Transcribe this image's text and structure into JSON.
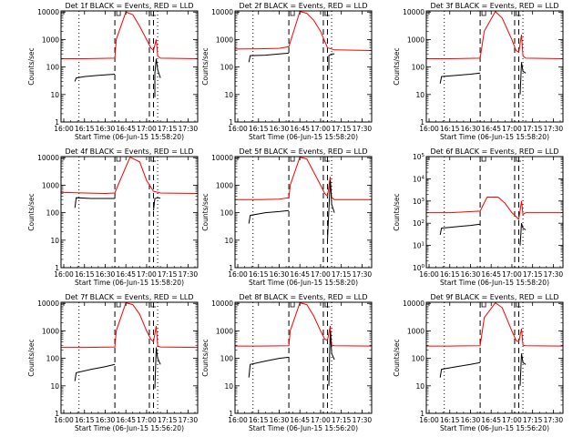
{
  "figure": {
    "background": "#ffffff",
    "axis_color": "#000000"
  },
  "chart_data": [
    {
      "type": "line",
      "detector": "1f",
      "title": "Det 1f BLACK = Events, RED = LLD",
      "xlabel": "Start Time (06-Jun-15 15:58:20)",
      "ylabel": "Counts/sec",
      "xlim": [
        "15:58",
        "17:37"
      ],
      "ylim": [
        1,
        11000
      ],
      "yscale": "log",
      "ytick_style": "plain",
      "xticks": [
        "16:00",
        "16:15",
        "16:30",
        "16:45",
        "17:00",
        "17:15",
        "17:30"
      ],
      "yticks": [
        1,
        10,
        100,
        1000,
        10000
      ],
      "dotted_lines": [
        "16:11",
        "17:08"
      ],
      "dashed_lines": [
        "16:37",
        "17:02",
        "17:05"
      ],
      "series": [
        {
          "name": "LLD",
          "color": "#ff0000",
          "x": [
            "15:58",
            "16:15",
            "16:37",
            "16:38",
            "16:45",
            "16:50",
            "16:55",
            "17:00",
            "17:03",
            "17:05",
            "17:07",
            "17:08",
            "17:10",
            "17:37"
          ],
          "y": [
            200,
            200,
            210,
            1000,
            10000,
            8000,
            3000,
            1000,
            500,
            400,
            1000,
            250,
            210,
            200
          ]
        },
        {
          "name": "Events",
          "color": "#000000",
          "x": [
            "16:08",
            "16:09",
            "16:15",
            "16:25",
            "16:37"
          ],
          "y": [
            30,
            40,
            45,
            50,
            55
          ]
        },
        {
          "name": "Events",
          "color": "#000000",
          "x": [
            "17:06",
            "17:06",
            "17:07",
            "17:08",
            "17:10"
          ],
          "y": [
            8,
            60,
            200,
            80,
            40
          ]
        }
      ]
    },
    {
      "type": "line",
      "detector": "2f",
      "title": "Det 2f BLACK = Events, RED = LLD",
      "xlabel": "Start Time (06-Jun-15 15:58:20)",
      "ylabel": "Counts/sec",
      "xlim": [
        "15:58",
        "17:37"
      ],
      "ylim": [
        1,
        11000
      ],
      "yscale": "log",
      "ytick_style": "plain",
      "xticks": [
        "16:00",
        "16:15",
        "16:30",
        "16:45",
        "17:00",
        "17:15",
        "17:30"
      ],
      "yticks": [
        1,
        10,
        100,
        1000,
        10000
      ],
      "dotted_lines": [
        "16:11",
        "17:08"
      ],
      "dashed_lines": [
        "16:37",
        "17:02",
        "17:05"
      ],
      "series": [
        {
          "name": "LLD",
          "color": "#ff0000",
          "x": [
            "15:58",
            "16:15",
            "16:30",
            "16:37",
            "16:45",
            "16:50",
            "16:55",
            "17:00",
            "17:05",
            "17:10",
            "17:37"
          ],
          "y": [
            450,
            460,
            480,
            550,
            10500,
            9000,
            5000,
            2000,
            500,
            420,
            400
          ]
        },
        {
          "name": "Events",
          "color": "#000000",
          "x": [
            "16:08",
            "16:09",
            "16:20",
            "16:30",
            "16:37"
          ],
          "y": [
            150,
            260,
            270,
            300,
            320
          ]
        },
        {
          "name": "Events",
          "color": "#000000",
          "x": [
            "17:06",
            "17:06",
            "17:08",
            "17:10"
          ],
          "y": [
            80,
            260,
            300,
            300
          ]
        }
      ]
    },
    {
      "type": "line",
      "detector": "3f",
      "title": "Det 3f BLACK = Events, RED = LLD",
      "xlabel": "Start Time (06-Jun-15 15:58:20)",
      "ylabel": "Counts/sec",
      "xlim": [
        "15:58",
        "17:37"
      ],
      "ylim": [
        1,
        11000
      ],
      "yscale": "log",
      "ytick_style": "plain",
      "xticks": [
        "16:00",
        "16:15",
        "16:30",
        "16:45",
        "17:00",
        "17:15",
        "17:30"
      ],
      "yticks": [
        1,
        10,
        100,
        1000,
        10000
      ],
      "dotted_lines": [
        "16:11",
        "17:08"
      ],
      "dashed_lines": [
        "16:37",
        "17:02",
        "17:05"
      ],
      "series": [
        {
          "name": "LLD",
          "color": "#ff0000",
          "x": [
            "15:58",
            "16:15",
            "16:37",
            "16:40",
            "16:48",
            "16:53",
            "17:00",
            "17:03",
            "17:05",
            "17:07",
            "17:08",
            "17:10",
            "17:37"
          ],
          "y": [
            200,
            200,
            210,
            2000,
            10500,
            6000,
            1000,
            400,
            350,
            1500,
            250,
            210,
            200
          ]
        },
        {
          "name": "Events",
          "color": "#000000",
          "x": [
            "16:08",
            "16:09",
            "16:20",
            "16:30",
            "16:37"
          ],
          "y": [
            25,
            45,
            50,
            55,
            60
          ]
        },
        {
          "name": "Events",
          "color": "#000000",
          "x": [
            "17:06",
            "17:07",
            "17:08",
            "17:10"
          ],
          "y": [
            10,
            150,
            70,
            60
          ]
        }
      ]
    },
    {
      "type": "line",
      "detector": "4f",
      "title": "Det 4f BLACK = Events, RED = LLD",
      "xlabel": "Start Time (06-Jun-15 15:58:20)",
      "ylabel": "Counts/sec",
      "xlim": [
        "15:58",
        "17:37"
      ],
      "ylim": [
        1,
        11000
      ],
      "yscale": "log",
      "ytick_style": "plain",
      "xticks": [
        "16:00",
        "16:15",
        "16:30",
        "16:45",
        "17:00",
        "17:15",
        "17:30"
      ],
      "yticks": [
        1,
        10,
        100,
        1000,
        10000
      ],
      "dotted_lines": [
        "16:11",
        "17:08"
      ],
      "dashed_lines": [
        "16:37",
        "17:02",
        "17:05"
      ],
      "series": [
        {
          "name": "LLD",
          "color": "#ff0000",
          "x": [
            "15:58",
            "16:15",
            "16:30",
            "16:37",
            "16:40",
            "16:48",
            "16:55",
            "17:00",
            "17:05",
            "17:10",
            "17:37"
          ],
          "y": [
            550,
            520,
            500,
            520,
            1200,
            10500,
            7000,
            1500,
            600,
            520,
            500
          ]
        },
        {
          "name": "Events",
          "color": "#000000",
          "x": [
            "16:08",
            "16:09",
            "16:20",
            "16:30",
            "16:37"
          ],
          "y": [
            150,
            350,
            330,
            330,
            330
          ]
        },
        {
          "name": "Events",
          "color": "#000000",
          "x": [
            "17:05",
            "17:06",
            "17:08",
            "17:10"
          ],
          "y": [
            120,
            330,
            350,
            340
          ]
        }
      ]
    },
    {
      "type": "line",
      "detector": "5f",
      "title": "Det 5f BLACK = Events, RED = LLD",
      "xlabel": "Start Time (06-Jun-15 15:58:20)",
      "ylabel": "Counts/sec",
      "xlim": [
        "15:58",
        "17:37"
      ],
      "ylim": [
        1,
        11000
      ],
      "yscale": "log",
      "ytick_style": "plain",
      "xticks": [
        "16:00",
        "16:15",
        "16:30",
        "16:45",
        "17:00",
        "17:15",
        "17:30"
      ],
      "yticks": [
        1,
        10,
        100,
        1000,
        10000
      ],
      "dotted_lines": [
        "16:11",
        "17:08"
      ],
      "dashed_lines": [
        "16:37",
        "17:02",
        "17:05"
      ],
      "series": [
        {
          "name": "LLD",
          "color": "#ff0000",
          "x": [
            "15:58",
            "16:15",
            "16:30",
            "16:37",
            "16:38",
            "16:45",
            "16:50",
            "16:55",
            "17:00",
            "17:03",
            "17:05",
            "17:07",
            "17:08",
            "17:10",
            "17:37"
          ],
          "y": [
            300,
            300,
            310,
            350,
            1000,
            10500,
            9000,
            3000,
            1000,
            500,
            400,
            2000,
            350,
            300,
            300
          ]
        },
        {
          "name": "Events",
          "color": "#000000",
          "x": [
            "16:08",
            "16:09",
            "16:20",
            "16:30",
            "16:37"
          ],
          "y": [
            40,
            80,
            100,
            110,
            120
          ]
        },
        {
          "name": "Events",
          "color": "#000000",
          "x": [
            "17:05",
            "17:07",
            "17:08",
            "17:10"
          ],
          "y": [
            10,
            1500,
            200,
            100
          ]
        }
      ]
    },
    {
      "type": "line",
      "detector": "6f",
      "title": "Det 6f BLACK = Events, RED = LLD",
      "xlabel": "Start Time (06-Jun-15 15:58:20)",
      "ylabel": "Counts/sec",
      "xlim": [
        "15:58",
        "17:37"
      ],
      "ylim": [
        1,
        100000
      ],
      "yscale": "log",
      "ytick_style": "power",
      "xticks": [
        "16:00",
        "16:15",
        "16:30",
        "16:45",
        "17:00",
        "17:15",
        "17:30"
      ],
      "yticks": [
        1,
        10,
        100,
        1000,
        10000,
        100000
      ],
      "dotted_lines": [
        "16:11",
        "17:08"
      ],
      "dashed_lines": [
        "16:37",
        "17:02",
        "17:05"
      ],
      "series": [
        {
          "name": "LLD",
          "color": "#ff0000",
          "x": [
            "15:58",
            "16:15",
            "16:37",
            "16:42",
            "16:50",
            "16:55",
            "17:00",
            "17:03",
            "17:05",
            "17:07",
            "17:08",
            "17:10",
            "17:37"
          ],
          "y": [
            300,
            300,
            350,
            1500,
            1500,
            800,
            300,
            200,
            150,
            1000,
            250,
            300,
            300
          ]
        },
        {
          "name": "Events",
          "color": "#000000",
          "x": [
            "16:08",
            "16:09",
            "16:20",
            "16:30",
            "16:37"
          ],
          "y": [
            30,
            60,
            70,
            80,
            90
          ]
        },
        {
          "name": "Events",
          "color": "#000000",
          "x": [
            "17:06",
            "17:07",
            "17:08",
            "17:10"
          ],
          "y": [
            10,
            100,
            60,
            50
          ]
        }
      ]
    },
    {
      "type": "line",
      "detector": "7f",
      "title": "Det 7f BLACK = Events, RED = LLD",
      "xlabel": "Start Time (06-Jun-15 15:56:20)",
      "ylabel": "Counts/sec",
      "xlim": [
        "15:58",
        "17:37"
      ],
      "ylim": [
        1,
        11000
      ],
      "yscale": "log",
      "ytick_style": "plain",
      "xticks": [
        "16:00",
        "16:15",
        "16:30",
        "16:45",
        "17:00",
        "17:15",
        "17:30"
      ],
      "yticks": [
        1,
        10,
        100,
        1000,
        10000
      ],
      "dotted_lines": [
        "16:11",
        "17:08"
      ],
      "dashed_lines": [
        "16:37",
        "17:02",
        "17:05"
      ],
      "series": [
        {
          "name": "LLD",
          "color": "#ff0000",
          "x": [
            "15:58",
            "16:15",
            "16:37",
            "16:38",
            "16:45",
            "16:50",
            "16:55",
            "17:00",
            "17:03",
            "17:05",
            "17:07",
            "17:08",
            "17:10",
            "17:37"
          ],
          "y": [
            250,
            250,
            260,
            1000,
            10500,
            9000,
            4000,
            1000,
            500,
            400,
            1500,
            280,
            260,
            250
          ]
        },
        {
          "name": "Events",
          "color": "#000000",
          "x": [
            "16:08",
            "16:09",
            "16:20",
            "16:30",
            "16:37"
          ],
          "y": [
            15,
            30,
            40,
            50,
            60
          ]
        },
        {
          "name": "Events",
          "color": "#000000",
          "x": [
            "17:06",
            "17:07",
            "17:08",
            "17:10"
          ],
          "y": [
            8,
            250,
            100,
            60
          ]
        }
      ]
    },
    {
      "type": "line",
      "detector": "8f",
      "title": "Det 8f BLACK = Events, RED = LLD",
      "xlabel": "Start Time (06-Jun-15 15:56:20)",
      "ylabel": "Counts/sec",
      "xlim": [
        "15:58",
        "17:37"
      ],
      "ylim": [
        1,
        11000
      ],
      "yscale": "log",
      "ytick_style": "plain",
      "xticks": [
        "16:00",
        "16:15",
        "16:30",
        "16:45",
        "17:00",
        "17:15",
        "17:30"
      ],
      "yticks": [
        1,
        10,
        100,
        1000,
        10000
      ],
      "dotted_lines": [
        "16:11",
        "17:08"
      ],
      "dashed_lines": [
        "16:37",
        "17:02",
        "17:05"
      ],
      "series": [
        {
          "name": "LLD",
          "color": "#ff0000",
          "x": [
            "15:58",
            "16:15",
            "16:37",
            "16:38",
            "16:45",
            "16:50",
            "16:55",
            "17:00",
            "17:03",
            "17:05",
            "17:07",
            "17:08",
            "17:10",
            "17:37"
          ],
          "y": [
            280,
            280,
            290,
            1000,
            10500,
            9000,
            3500,
            1000,
            500,
            450,
            1500,
            300,
            290,
            280
          ]
        },
        {
          "name": "Events",
          "color": "#000000",
          "x": [
            "16:08",
            "16:09",
            "16:20",
            "16:30",
            "16:37"
          ],
          "y": [
            20,
            60,
            80,
            100,
            110
          ]
        },
        {
          "name": "Events",
          "color": "#000000",
          "x": [
            "17:06",
            "17:07",
            "17:08",
            "17:10"
          ],
          "y": [
            10,
            1000,
            150,
            90
          ]
        }
      ]
    },
    {
      "type": "line",
      "detector": "9f",
      "title": "Det 9f BLACK = Events, RED = LLD",
      "xlabel": "Start Time (06-Jun-15 15:56:20)",
      "ylabel": "Counts/sec",
      "xlim": [
        "15:58",
        "17:37"
      ],
      "ylim": [
        1,
        11000
      ],
      "yscale": "log",
      "ytick_style": "plain",
      "xticks": [
        "16:00",
        "16:15",
        "16:30",
        "16:45",
        "17:00",
        "17:15",
        "17:30"
      ],
      "yticks": [
        1,
        10,
        100,
        1000,
        10000
      ],
      "dotted_lines": [
        "16:11",
        "17:08"
      ],
      "dashed_lines": [
        "16:37",
        "17:02",
        "17:05"
      ],
      "series": [
        {
          "name": "LLD",
          "color": "#ff0000",
          "x": [
            "15:58",
            "16:15",
            "16:37",
            "16:40",
            "16:48",
            "16:53",
            "17:00",
            "17:03",
            "17:05",
            "17:07",
            "17:08",
            "17:10",
            "17:37"
          ],
          "y": [
            280,
            280,
            290,
            3000,
            10500,
            7000,
            1000,
            450,
            400,
            1200,
            300,
            290,
            280
          ]
        },
        {
          "name": "Events",
          "color": "#000000",
          "x": [
            "16:08",
            "16:09",
            "16:20",
            "16:30",
            "16:37"
          ],
          "y": [
            20,
            40,
            50,
            60,
            70
          ]
        },
        {
          "name": "Events",
          "color": "#000000",
          "x": [
            "17:06",
            "17:07",
            "17:08",
            "17:10"
          ],
          "y": [
            10,
            150,
            70,
            60
          ]
        }
      ]
    }
  ]
}
